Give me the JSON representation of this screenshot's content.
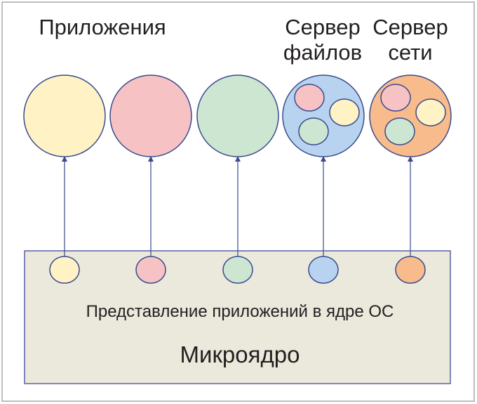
{
  "labels": {
    "applications": "Приложения",
    "file_server_line1": "Сервер",
    "file_server_line2": "файлов",
    "net_server_line1": "Сервер",
    "net_server_line2": "сети",
    "kernel_representation": "Представление приложений в ядре ОС",
    "microkernel": "Микроядро"
  },
  "colors": {
    "frame_border": "#a9a9a9",
    "kernel_fill": "#ebe8dc",
    "kernel_border": "#404a9a",
    "stroke": "#3a4a8c",
    "yellow": "#fff2c4",
    "pink": "#f7c2c4",
    "green": "#cde6d2",
    "blue": "#b8d3ef",
    "orange": "#f8bb8c"
  },
  "nodes": [
    {
      "name": "app-yellow",
      "color": "yellow"
    },
    {
      "name": "app-pink",
      "color": "pink"
    },
    {
      "name": "app-green",
      "color": "green"
    },
    {
      "name": "file-server",
      "color": "blue",
      "contains": [
        "pink",
        "yellow",
        "green"
      ]
    },
    {
      "name": "network-server",
      "color": "orange",
      "contains": [
        "pink",
        "yellow",
        "green"
      ]
    }
  ]
}
